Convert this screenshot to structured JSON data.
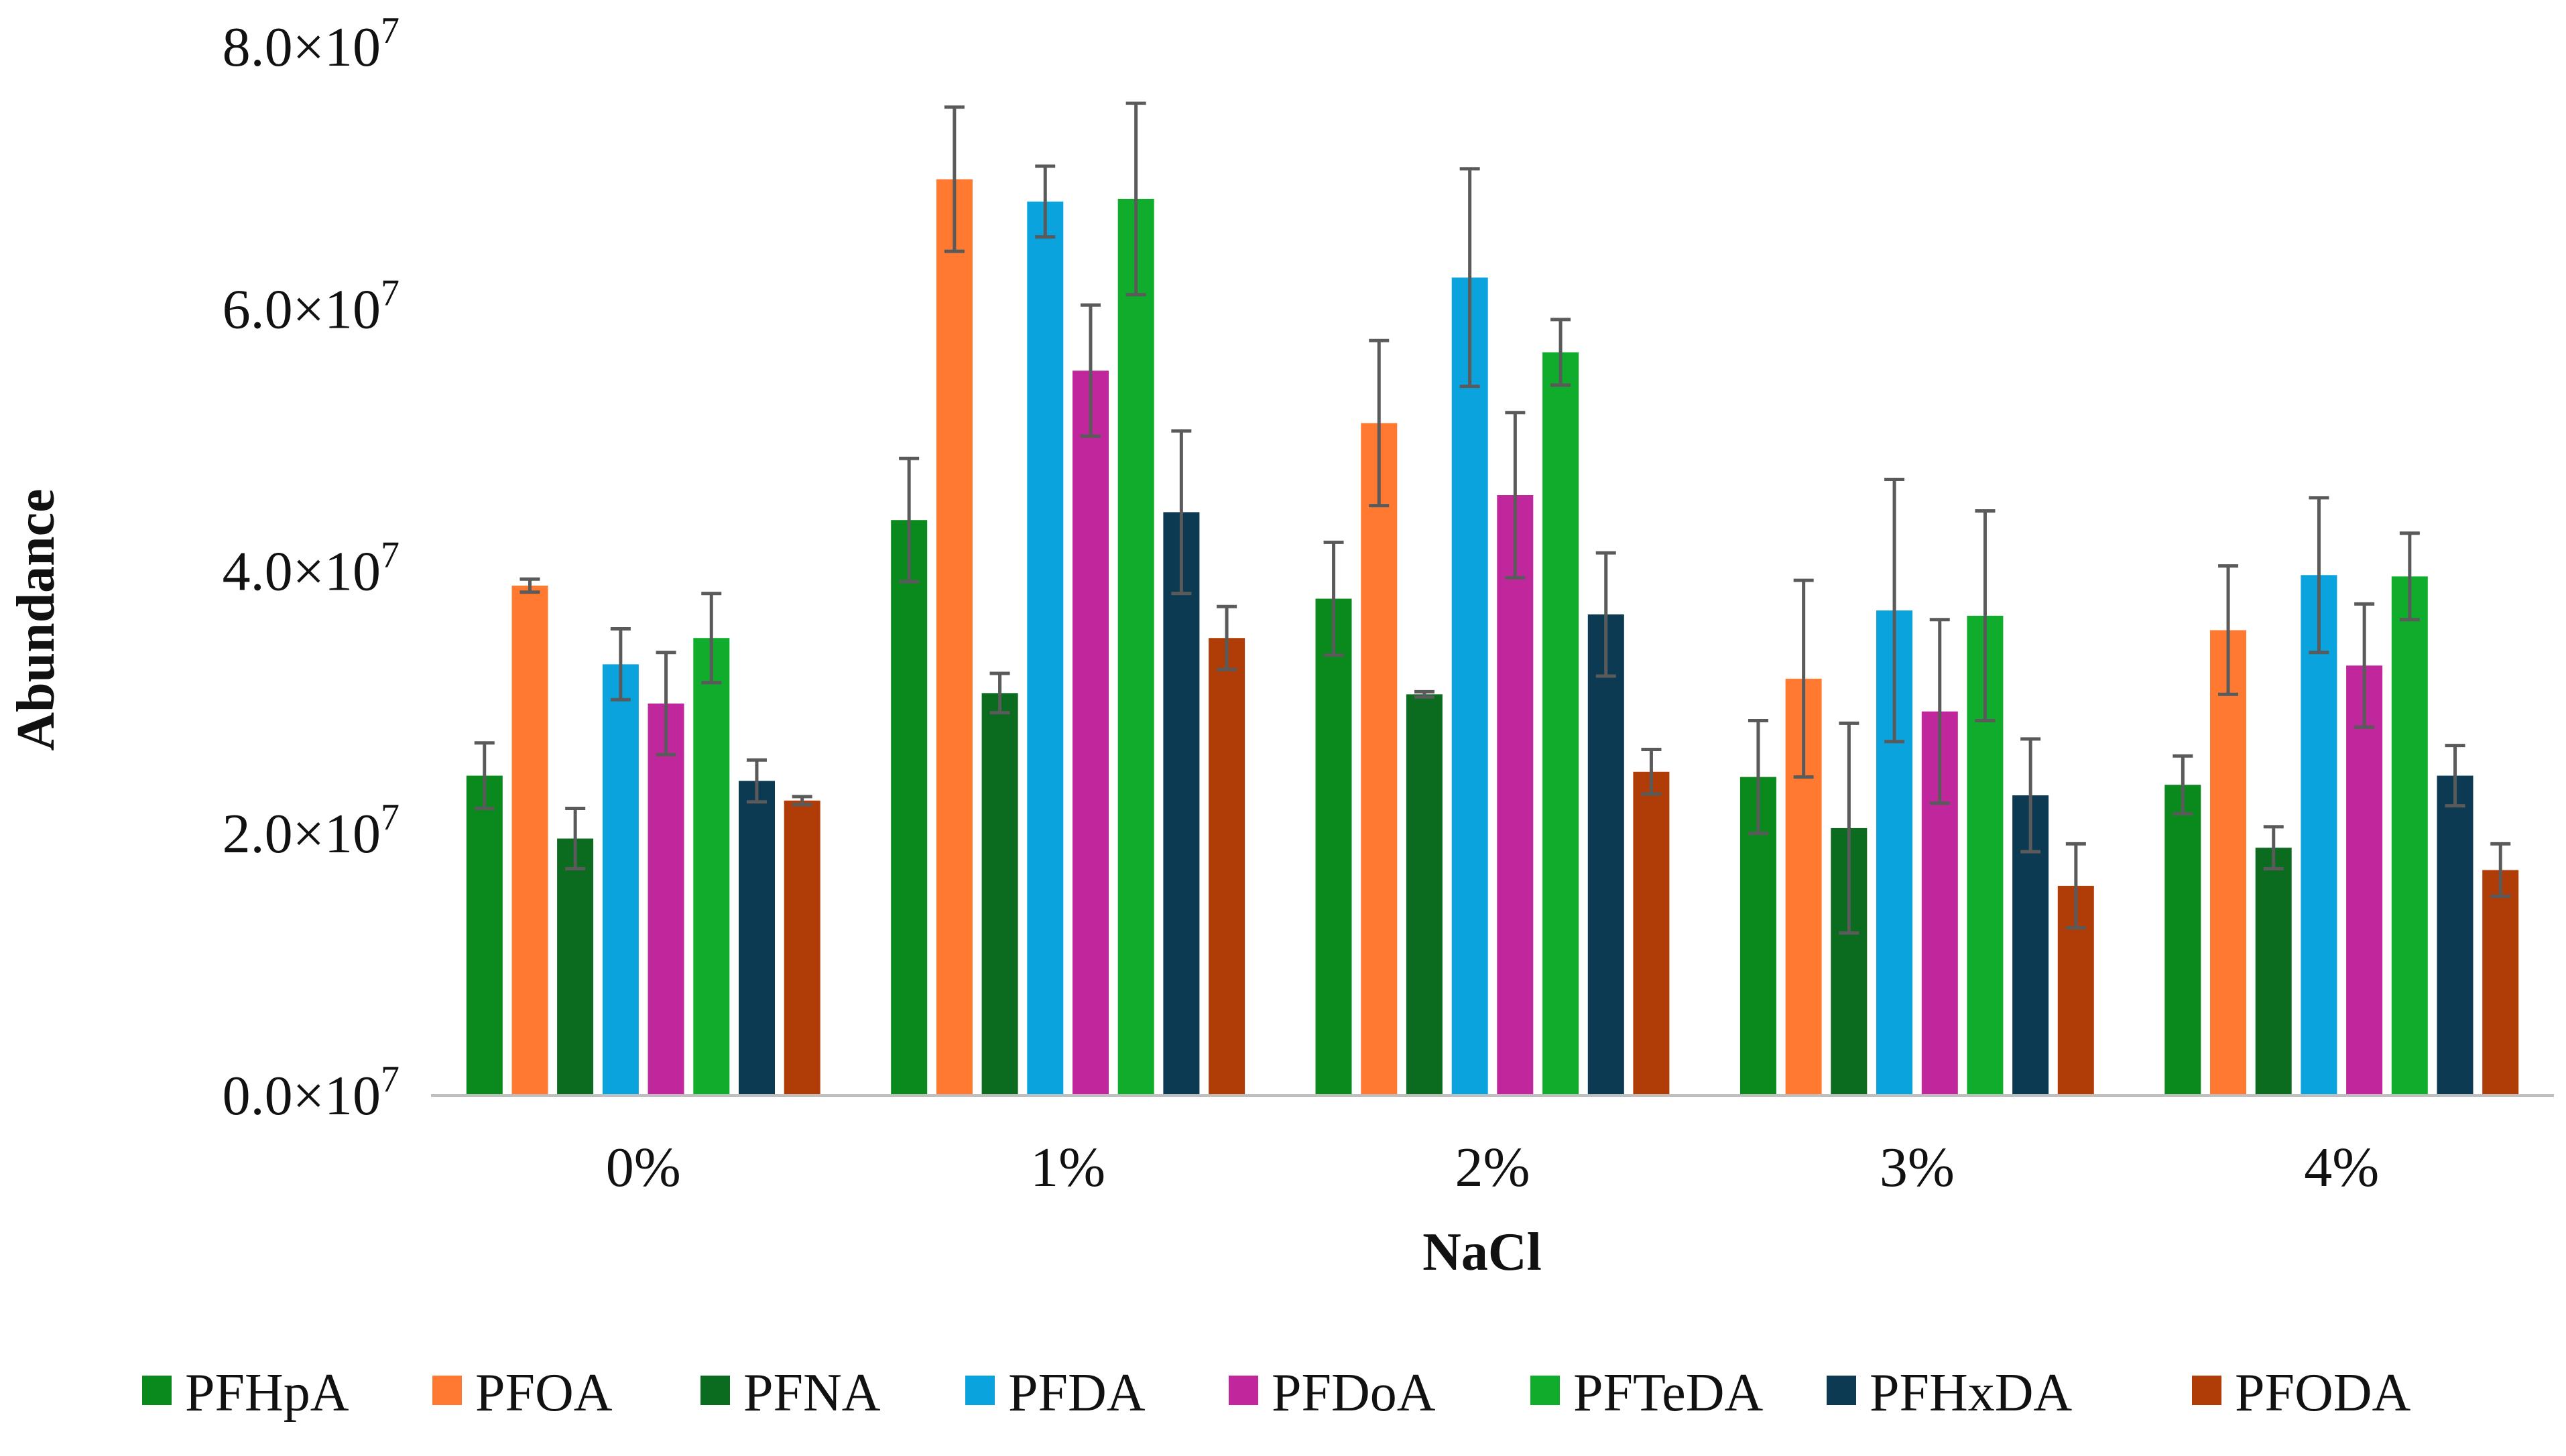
{
  "chart_data": {
    "type": "bar",
    "title": "",
    "xlabel": "NaCl",
    "ylabel": "Abundance",
    "ylim": [
      0,
      80000000
    ],
    "y_ticks": [
      {
        "value": 0,
        "mantissa": "0.0",
        "exp": "7"
      },
      {
        "value": 20000000,
        "mantissa": "2.0",
        "exp": "7"
      },
      {
        "value": 40000000,
        "mantissa": "4.0",
        "exp": "7"
      },
      {
        "value": 60000000,
        "mantissa": "6.0",
        "exp": "7"
      },
      {
        "value": 80000000,
        "mantissa": "8.0",
        "exp": "7"
      }
    ],
    "tick_times": "×10",
    "categories": [
      "0%",
      "1%",
      "2%",
      "3%",
      "4%"
    ],
    "legend_position": "bottom",
    "grid": false,
    "series": [
      {
        "name": "PFHpA",
        "color": "#0a8a1c",
        "values": [
          24300000,
          43800000,
          37800000,
          24200000,
          23600000
        ],
        "errors": [
          2500000,
          4700000,
          4300000,
          4300000,
          2200000
        ]
      },
      {
        "name": "PFOA",
        "color": "#ff7a30",
        "values": [
          38800000,
          69800000,
          51200000,
          31700000,
          35400000
        ],
        "errors": [
          500000,
          5500000,
          6300000,
          7500000,
          4900000
        ]
      },
      {
        "name": "PFNA",
        "color": "#0b6b1e",
        "values": [
          19500000,
          30600000,
          30500000,
          20300000,
          18800000
        ],
        "errors": [
          2300000,
          1500000,
          200000,
          8000000,
          1600000
        ]
      },
      {
        "name": "PFDA",
        "color": "#0aa3dd",
        "values": [
          32800000,
          68100000,
          62300000,
          36900000,
          39600000
        ],
        "errors": [
          2700000,
          2700000,
          8300000,
          10000000,
          5900000
        ]
      },
      {
        "name": "PFDoA",
        "color": "#c0279c",
        "values": [
          29800000,
          55200000,
          45700000,
          29200000,
          32700000
        ],
        "errors": [
          3900000,
          5000000,
          6300000,
          7000000,
          4700000
        ]
      },
      {
        "name": "PFTeDA",
        "color": "#10ad2c",
        "values": [
          34800000,
          68300000,
          56600000,
          36500000,
          39500000
        ],
        "errors": [
          3400000,
          7300000,
          2500000,
          8000000,
          3300000
        ]
      },
      {
        "name": "PFHxDA",
        "color": "#0b3a52",
        "values": [
          23900000,
          44400000,
          36600000,
          22800000,
          24300000
        ],
        "errors": [
          1600000,
          6200000,
          4700000,
          4300000,
          2300000
        ]
      },
      {
        "name": "PFODA",
        "color": "#b03d08",
        "values": [
          22400000,
          34800000,
          24600000,
          15900000,
          17100000
        ],
        "errors": [
          300000,
          2400000,
          1700000,
          3200000,
          2000000
        ]
      }
    ]
  }
}
